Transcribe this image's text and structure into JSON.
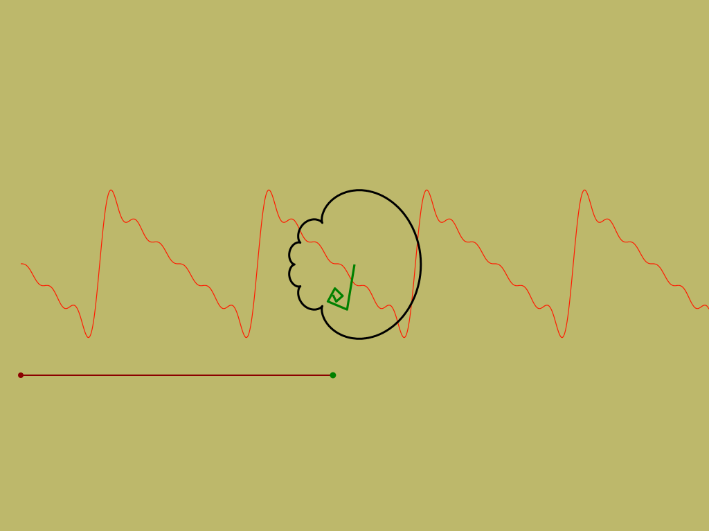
{
  "colors": {
    "background": "#bdb86b",
    "wave": "#ff1a00",
    "locus": "#000000",
    "arms": "#008000",
    "baseline": "#8b0000"
  },
  "diagram": {
    "harmonics": 6,
    "base_amplitude": 1,
    "cycles_visible": 4.4,
    "description_icons": {
      "wave": "wave-trace-icon",
      "locus": "epicycle-locus-icon",
      "arms": "epicycle-arms-icon"
    }
  }
}
